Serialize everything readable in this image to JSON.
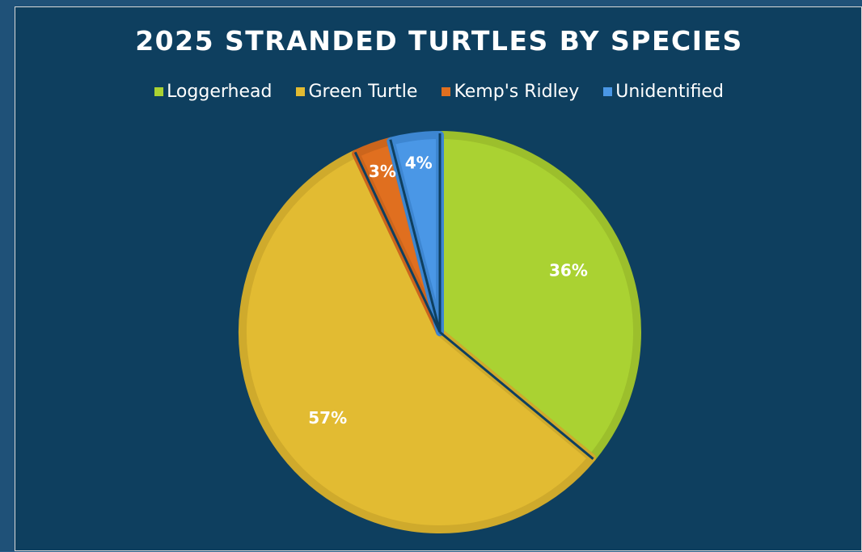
{
  "chart_data": {
    "type": "pie",
    "title": "2025 STRANDED TURTLES BY SPECIES",
    "legend_position": "top",
    "slices": [
      {
        "name": "Loggerhead",
        "value": 36,
        "label": "36%",
        "color": "#aad232",
        "edge": "#9cbf2c"
      },
      {
        "name": "Green Turtle",
        "value": 57,
        "label": "57%",
        "color": "#e2bb32",
        "edge": "#cfaa2c"
      },
      {
        "name": "Kemp's Ridley",
        "value": 3,
        "label": "3%",
        "color": "#e06f1f",
        "edge": "#cc651c"
      },
      {
        "name": "Unidentified",
        "value": 4,
        "label": "4%",
        "color": "#4a97e6",
        "edge": "#3d86d1"
      }
    ]
  },
  "colors": {
    "background": "#0e3f5f",
    "text": "#ffffff"
  }
}
